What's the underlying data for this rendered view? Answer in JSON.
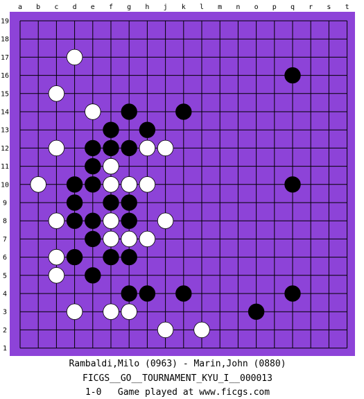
{
  "board": {
    "size": 19,
    "board_color": "#8d43d8",
    "line_color": "#000000",
    "column_labels": [
      "a",
      "b",
      "c",
      "d",
      "e",
      "f",
      "g",
      "h",
      "j",
      "k",
      "l",
      "m",
      "n",
      "o",
      "p",
      "q",
      "r",
      "s",
      "t"
    ],
    "row_labels": [
      "19",
      "18",
      "17",
      "16",
      "15",
      "14",
      "13",
      "12",
      "11",
      "10",
      "9",
      "8",
      "7",
      "6",
      "5",
      "4",
      "3",
      "2",
      "1"
    ],
    "stones": [
      {
        "col": "d",
        "row": 17,
        "color": "white"
      },
      {
        "col": "c",
        "row": 15,
        "color": "white"
      },
      {
        "col": "q",
        "row": 16,
        "color": "black"
      },
      {
        "col": "e",
        "row": 14,
        "color": "white"
      },
      {
        "col": "g",
        "row": 14,
        "color": "black"
      },
      {
        "col": "k",
        "row": 14,
        "color": "black"
      },
      {
        "col": "f",
        "row": 13,
        "color": "black"
      },
      {
        "col": "h",
        "row": 13,
        "color": "black"
      },
      {
        "col": "c",
        "row": 12,
        "color": "white"
      },
      {
        "col": "e",
        "row": 12,
        "color": "black"
      },
      {
        "col": "f",
        "row": 12,
        "color": "black"
      },
      {
        "col": "g",
        "row": 12,
        "color": "black"
      },
      {
        "col": "h",
        "row": 12,
        "color": "white"
      },
      {
        "col": "j",
        "row": 12,
        "color": "white"
      },
      {
        "col": "e",
        "row": 11,
        "color": "black"
      },
      {
        "col": "f",
        "row": 11,
        "color": "white"
      },
      {
        "col": "b",
        "row": 10,
        "color": "white"
      },
      {
        "col": "d",
        "row": 10,
        "color": "black"
      },
      {
        "col": "e",
        "row": 10,
        "color": "black"
      },
      {
        "col": "f",
        "row": 10,
        "color": "white"
      },
      {
        "col": "g",
        "row": 10,
        "color": "white"
      },
      {
        "col": "h",
        "row": 10,
        "color": "white"
      },
      {
        "col": "q",
        "row": 10,
        "color": "black"
      },
      {
        "col": "d",
        "row": 9,
        "color": "black"
      },
      {
        "col": "f",
        "row": 9,
        "color": "black"
      },
      {
        "col": "g",
        "row": 9,
        "color": "black"
      },
      {
        "col": "c",
        "row": 8,
        "color": "white"
      },
      {
        "col": "d",
        "row": 8,
        "color": "black"
      },
      {
        "col": "e",
        "row": 8,
        "color": "black"
      },
      {
        "col": "f",
        "row": 8,
        "color": "white"
      },
      {
        "col": "g",
        "row": 8,
        "color": "black"
      },
      {
        "col": "j",
        "row": 8,
        "color": "white"
      },
      {
        "col": "e",
        "row": 7,
        "color": "black"
      },
      {
        "col": "f",
        "row": 7,
        "color": "white"
      },
      {
        "col": "g",
        "row": 7,
        "color": "white"
      },
      {
        "col": "h",
        "row": 7,
        "color": "white"
      },
      {
        "col": "c",
        "row": 6,
        "color": "white"
      },
      {
        "col": "d",
        "row": 6,
        "color": "black"
      },
      {
        "col": "f",
        "row": 6,
        "color": "black"
      },
      {
        "col": "g",
        "row": 6,
        "color": "black"
      },
      {
        "col": "c",
        "row": 5,
        "color": "white"
      },
      {
        "col": "e",
        "row": 5,
        "color": "black"
      },
      {
        "col": "g",
        "row": 4,
        "color": "black"
      },
      {
        "col": "h",
        "row": 4,
        "color": "black"
      },
      {
        "col": "k",
        "row": 4,
        "color": "black"
      },
      {
        "col": "q",
        "row": 4,
        "color": "black"
      },
      {
        "col": "d",
        "row": 3,
        "color": "white"
      },
      {
        "col": "f",
        "row": 3,
        "color": "white"
      },
      {
        "col": "g",
        "row": 3,
        "color": "white"
      },
      {
        "col": "o",
        "row": 3,
        "color": "black"
      },
      {
        "col": "j",
        "row": 2,
        "color": "white"
      },
      {
        "col": "l",
        "row": 2,
        "color": "white"
      }
    ]
  },
  "game": {
    "players": "Rambaldi,Milo (0963) - Marin,John (0880)",
    "event": "FICGS__GO__TOURNAMENT_KYU_I__000013",
    "result_line": "1-0   Game played at www.ficgs.com"
  }
}
